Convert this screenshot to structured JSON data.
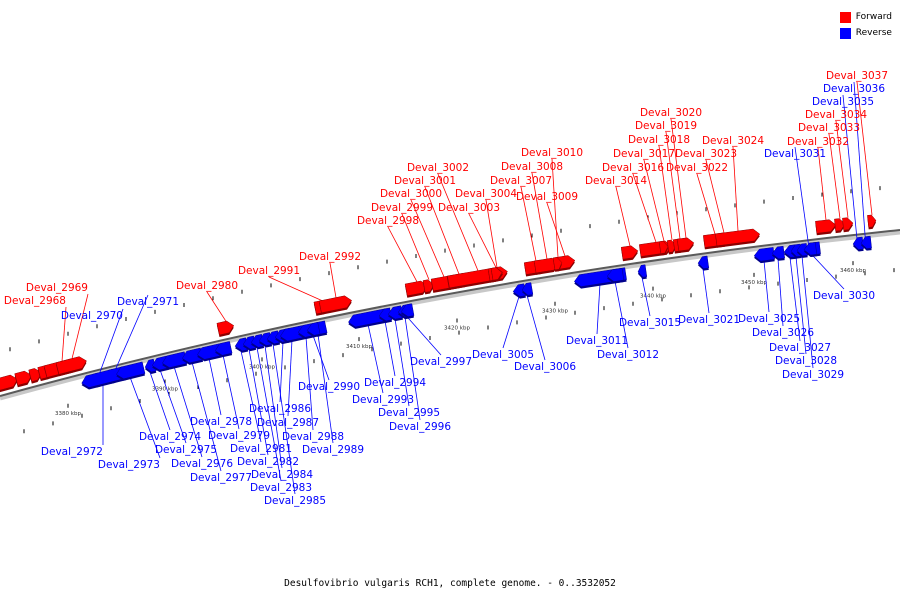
{
  "legend": {
    "forward_label": "Forward",
    "reverse_label": "Reverse",
    "forward_color": "#ff0000",
    "reverse_color": "#0000ff"
  },
  "caption": "Desulfovibrio vulgaris RCH1, complete genome. - 0..3532052",
  "scale": {
    "unit": "kbp",
    "ticks": [
      {
        "kbp": 3380,
        "label": "3380 kbp"
      },
      {
        "kbp": 3390,
        "label": "3390 kbp"
      },
      {
        "kbp": 3400,
        "label": "3400 kbp"
      },
      {
        "kbp": 3410,
        "label": "3410 kbp"
      },
      {
        "kbp": 3420,
        "label": "3420 kbp"
      },
      {
        "kbp": 3430,
        "label": "3430 kbp"
      },
      {
        "kbp": 3440,
        "label": "3440 kbp"
      },
      {
        "kbp": 3450,
        "label": "3450 kbp"
      },
      {
        "kbp": 3460,
        "label": "3460 kbp"
      }
    ]
  },
  "genes": [
    {
      "name": "Deval_2968",
      "strand": "forward"
    },
    {
      "name": "Deval_2969",
      "strand": "forward"
    },
    {
      "name": "Deval_2970",
      "strand": "reverse"
    },
    {
      "name": "Deval_2971",
      "strand": "reverse"
    },
    {
      "name": "Deval_2972",
      "strand": "reverse"
    },
    {
      "name": "Deval_2973",
      "strand": "reverse"
    },
    {
      "name": "Deval_2974",
      "strand": "reverse"
    },
    {
      "name": "Deval_2975",
      "strand": "reverse"
    },
    {
      "name": "Deval_2976",
      "strand": "reverse"
    },
    {
      "name": "Deval_2977",
      "strand": "reverse"
    },
    {
      "name": "Deval_2978",
      "strand": "reverse"
    },
    {
      "name": "Deval_2979",
      "strand": "reverse"
    },
    {
      "name": "Deval_2980",
      "strand": "forward"
    },
    {
      "name": "Deval_2981",
      "strand": "reverse"
    },
    {
      "name": "Deval_2982",
      "strand": "reverse"
    },
    {
      "name": "Deval_2983",
      "strand": "reverse"
    },
    {
      "name": "Deval_2984",
      "strand": "reverse"
    },
    {
      "name": "Deval_2985",
      "strand": "reverse"
    },
    {
      "name": "Deval_2986",
      "strand": "reverse"
    },
    {
      "name": "Deval_2987",
      "strand": "reverse"
    },
    {
      "name": "Deval_2988",
      "strand": "reverse"
    },
    {
      "name": "Deval_2989",
      "strand": "reverse"
    },
    {
      "name": "Deval_2990",
      "strand": "reverse"
    },
    {
      "name": "Deval_2991",
      "strand": "forward"
    },
    {
      "name": "Deval_2992",
      "strand": "forward"
    },
    {
      "name": "Deval_2993",
      "strand": "reverse"
    },
    {
      "name": "Deval_2994",
      "strand": "reverse"
    },
    {
      "name": "Deval_2995",
      "strand": "reverse"
    },
    {
      "name": "Deval_2996",
      "strand": "reverse"
    },
    {
      "name": "Deval_2997",
      "strand": "reverse"
    },
    {
      "name": "Deval_2998",
      "strand": "forward"
    },
    {
      "name": "Deval_2999",
      "strand": "forward"
    },
    {
      "name": "Deval_3000",
      "strand": "forward"
    },
    {
      "name": "Deval_3001",
      "strand": "forward"
    },
    {
      "name": "Deval_3002",
      "strand": "forward"
    },
    {
      "name": "Deval_3003",
      "strand": "forward"
    },
    {
      "name": "Deval_3004",
      "strand": "forward"
    },
    {
      "name": "Deval_3005",
      "strand": "reverse"
    },
    {
      "name": "Deval_3006",
      "strand": "reverse"
    },
    {
      "name": "Deval_3007",
      "strand": "forward"
    },
    {
      "name": "Deval_3008",
      "strand": "forward"
    },
    {
      "name": "Deval_3009",
      "strand": "forward"
    },
    {
      "name": "Deval_3010",
      "strand": "forward"
    },
    {
      "name": "Deval_3011",
      "strand": "reverse"
    },
    {
      "name": "Deval_3012",
      "strand": "reverse"
    },
    {
      "name": "Deval_3014",
      "strand": "forward"
    },
    {
      "name": "Deval_3015",
      "strand": "reverse"
    },
    {
      "name": "Deval_3016",
      "strand": "forward"
    },
    {
      "name": "Deval_3017",
      "strand": "forward"
    },
    {
      "name": "Deval_3018",
      "strand": "forward"
    },
    {
      "name": "Deval_3019",
      "strand": "forward"
    },
    {
      "name": "Deval_3020",
      "strand": "forward"
    },
    {
      "name": "Deval_3021",
      "strand": "reverse"
    },
    {
      "name": "Deval_3022",
      "strand": "forward"
    },
    {
      "name": "Deval_3023",
      "strand": "forward"
    },
    {
      "name": "Deval_3024",
      "strand": "forward"
    },
    {
      "name": "Deval_3025",
      "strand": "reverse"
    },
    {
      "name": "Deval_3026",
      "strand": "reverse"
    },
    {
      "name": "Deval_3027",
      "strand": "reverse"
    },
    {
      "name": "Deval_3028",
      "strand": "reverse"
    },
    {
      "name": "Deval_3029",
      "strand": "reverse"
    },
    {
      "name": "Deval_3030",
      "strand": "reverse"
    },
    {
      "name": "Deval_3031",
      "strand": "reverse"
    },
    {
      "name": "Deval_3032",
      "strand": "forward"
    },
    {
      "name": "Deval_3033",
      "strand": "forward"
    },
    {
      "name": "Deval_3034",
      "strand": "forward"
    },
    {
      "name": "Deval_3035",
      "strand": "reverse"
    },
    {
      "name": "Deval_3036",
      "strand": "reverse"
    },
    {
      "name": "Deval_3037",
      "strand": "forward"
    }
  ]
}
